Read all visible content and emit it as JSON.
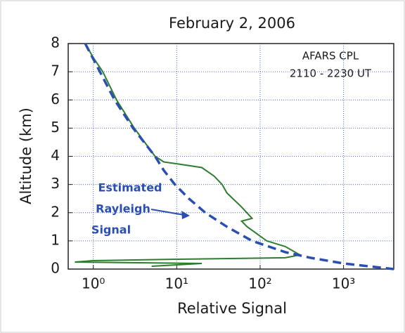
{
  "chart_data": {
    "type": "line",
    "title": "February 2, 2006",
    "xlabel": "Relative Signal",
    "ylabel": "Altitude (km)",
    "xscale": "log",
    "xlim": [
      0.5,
      4000
    ],
    "ylim": [
      0,
      8
    ],
    "xticks": [
      {
        "value": 1,
        "label": "10⁰"
      },
      {
        "value": 10,
        "label": "10¹"
      },
      {
        "value": 100,
        "label": "10²"
      },
      {
        "value": 1000,
        "label": "10³"
      }
    ],
    "yticks": [
      0,
      1,
      2,
      3,
      4,
      5,
      6,
      7,
      8
    ],
    "grid": true,
    "annotations": [
      "AFARS CPL",
      "2110 - 2230 UT"
    ],
    "rayleigh_label": [
      "Estimated",
      "Rayleigh",
      "Signal"
    ],
    "series": [
      {
        "color": "#2e7d2e",
        "dashed": false,
        "x": [
          0.8,
          1.0,
          1.3,
          1.9,
          3.1,
          5.5,
          7,
          12,
          20,
          28,
          35,
          40,
          60,
          80,
          60,
          70,
          120,
          200,
          300,
          200,
          10,
          1,
          0.6,
          20,
          10,
          5
        ],
        "y": [
          8,
          7.5,
          7,
          6,
          5,
          4,
          3.8,
          3.7,
          3.6,
          3.3,
          3.0,
          2.7,
          2.2,
          1.8,
          1.7,
          1.5,
          1,
          0.8,
          0.5,
          0.4,
          0.35,
          0.3,
          0.25,
          0.2,
          0.15,
          0.1
        ]
      },
      {
        "color": "#2a4fb0",
        "dashed": true,
        "x": [
          0.8,
          1.2,
          1.8,
          3,
          5.5,
          7,
          9.5,
          14,
          22,
          40,
          80,
          200,
          400,
          1000,
          4000
        ],
        "y": [
          8,
          7,
          6,
          5,
          4,
          3.5,
          3,
          2.5,
          2,
          1.5,
          1,
          0.6,
          0.4,
          0.2,
          0
        ]
      }
    ]
  }
}
